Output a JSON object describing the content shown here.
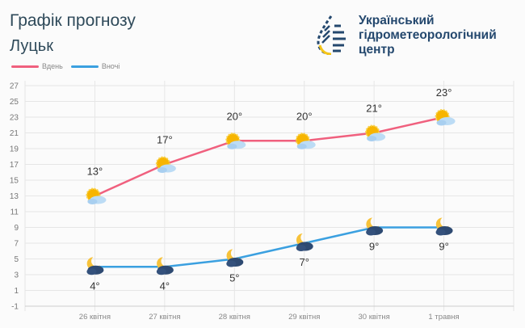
{
  "header": {
    "title": "Графік прогнозу",
    "city": "Луцьк"
  },
  "organization": {
    "lines": [
      "Український",
      "гідрометеорологічний",
      "центр"
    ]
  },
  "colors": {
    "day": "#f0607e",
    "night": "#3ba0e0",
    "grid": "#e6e6e6"
  },
  "chart_data": {
    "type": "line",
    "categories": [
      "26 квітня",
      "27 квітня",
      "28 квітня",
      "29 квітня",
      "30 квітня",
      "1 травня"
    ],
    "series": [
      {
        "name": "Вдень",
        "values": [
          13,
          17,
          20,
          20,
          21,
          23
        ],
        "labels": [
          "13°",
          "17°",
          "20°",
          "20°",
          "21°",
          "23°"
        ],
        "icon": "sun-cloud-icon"
      },
      {
        "name": "Вночі",
        "values": [
          4,
          4,
          5,
          7,
          9,
          9
        ],
        "labels": [
          "4°",
          "4°",
          "5°",
          "7°",
          "9°",
          "9°"
        ],
        "icon": "moon-cloud-icon"
      }
    ],
    "yticks": [
      -1,
      1,
      3,
      5,
      7,
      9,
      11,
      13,
      15,
      17,
      19,
      21,
      23,
      25,
      27
    ],
    "ylim": [
      -1,
      27
    ],
    "grid": true,
    "legend": "top-left"
  }
}
